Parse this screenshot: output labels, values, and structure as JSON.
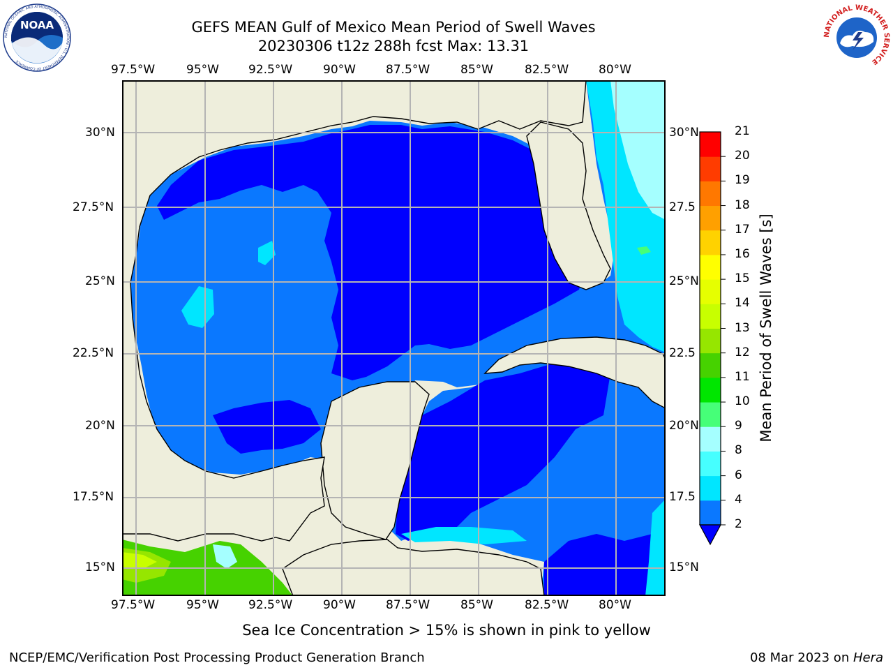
{
  "header": {
    "title_line1": "GEFS MEAN Gulf of Mexico Mean Period of Swell Waves",
    "title_line2": "20230306 t12z 288h fcst   Max: 13.31"
  },
  "logos": {
    "left": "NOAA",
    "left_ring": "NATIONAL OCEANIC AND ATMOSPHERIC ADMINISTRATION · U.S. DEPARTMENT OF COMMERCE",
    "right_ring": "NATIONAL WEATHER SERVICE"
  },
  "map": {
    "lon_labels": [
      "97.5°W",
      "95°W",
      "92.5°W",
      "90°W",
      "87.5°W",
      "85°W",
      "82.5°W",
      "80°W"
    ],
    "lat_labels_left": [
      "30°N",
      "27.5°N",
      "25°N",
      "22.5°N",
      "20°N",
      "17.5°N",
      "15°N"
    ],
    "lat_labels_right": [
      "30°N",
      "27.5",
      "25°N",
      "22.5",
      "20°N",
      "17.5",
      "15°N"
    ],
    "land_color": "#eeeedc",
    "grid_color": "#b4b4b4"
  },
  "colorbar": {
    "label": "Mean Period of Swell Waves [s]",
    "ticks": [
      "2",
      "4",
      "6",
      "8",
      "9",
      "10",
      "11",
      "12",
      "13",
      "14",
      "15",
      "16",
      "17",
      "18",
      "19",
      "20",
      "21"
    ],
    "colors": [
      "#0000ff",
      "#0a78ff",
      "#00e6ff",
      "#46ffff",
      "#a5ffff",
      "#46ff78",
      "#00e600",
      "#46d200",
      "#96e600",
      "#c8ff00",
      "#e6ff00",
      "#ffff00",
      "#ffd200",
      "#ffa000",
      "#ff7800",
      "#ff3c00",
      "#ff0000"
    ]
  },
  "footer": {
    "note": "Sea Ice Concentration > 15% is shown in pink to yellow",
    "left": "NCEP/EMC/Verification Post Processing Product Generation Branch",
    "date": "08 Mar 2023 on ",
    "machine": "Hera"
  }
}
